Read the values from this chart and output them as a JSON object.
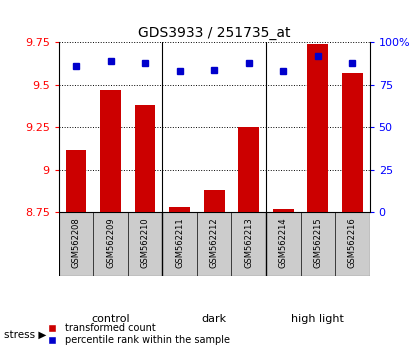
{
  "title": "GDS3933 / 251735_at",
  "samples": [
    "GSM562208",
    "GSM562209",
    "GSM562210",
    "GSM562211",
    "GSM562212",
    "GSM562213",
    "GSM562214",
    "GSM562215",
    "GSM562216"
  ],
  "red_values": [
    9.12,
    9.47,
    9.38,
    8.78,
    8.88,
    9.25,
    8.77,
    9.74,
    9.57
  ],
  "blue_values": [
    86,
    89,
    88,
    83,
    84,
    88,
    83,
    92,
    88
  ],
  "groups": [
    {
      "label": "control",
      "start": 0,
      "end": 3,
      "color": "#cceecc"
    },
    {
      "label": "dark",
      "start": 3,
      "end": 6,
      "color": "#88dd88"
    },
    {
      "label": "high light",
      "start": 6,
      "end": 9,
      "color": "#44bb44"
    }
  ],
  "ylim_left": [
    8.75,
    9.75
  ],
  "ylim_right": [
    0,
    100
  ],
  "yticks_left": [
    8.75,
    9.0,
    9.25,
    9.5,
    9.75
  ],
  "yticks_right": [
    0,
    25,
    50,
    75,
    100
  ],
  "ytick_labels_left": [
    "8.75",
    "9",
    "9.25",
    "9.5",
    "9.75"
  ],
  "ytick_labels_right": [
    "0",
    "25",
    "50",
    "75",
    "100%"
  ],
  "bar_color": "#cc0000",
  "dot_color": "#0000cc",
  "sample_box_color": "#cccccc",
  "stress_label": "stress",
  "legend_red": "transformed count",
  "legend_blue": "percentile rank within the sample",
  "fig_width": 4.2,
  "fig_height": 3.54,
  "dpi": 100
}
